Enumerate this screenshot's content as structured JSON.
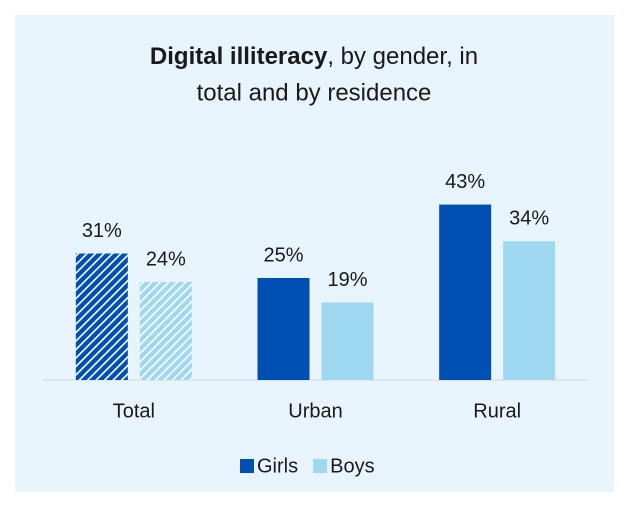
{
  "chart_data": {
    "type": "bar",
    "title": {
      "bold": "Digital illiteracy",
      "rest_line1": ", by gender, in",
      "line2": "total and by residence"
    },
    "categories": [
      "Total",
      "Urban",
      "Rural"
    ],
    "series": [
      {
        "name": "Girls",
        "color": "#0050b4",
        "values": [
          31,
          25,
          43
        ],
        "value_labels": [
          "31%",
          "25%",
          "43%"
        ]
      },
      {
        "name": "Boys",
        "color": "#9ed8f0",
        "values": [
          24,
          19,
          34
        ],
        "value_labels": [
          "24%",
          "19%",
          "34%"
        ]
      }
    ],
    "hatched": [
      true,
      false,
      false
    ],
    "ylim": [
      0,
      50
    ],
    "legend": "bottom"
  }
}
